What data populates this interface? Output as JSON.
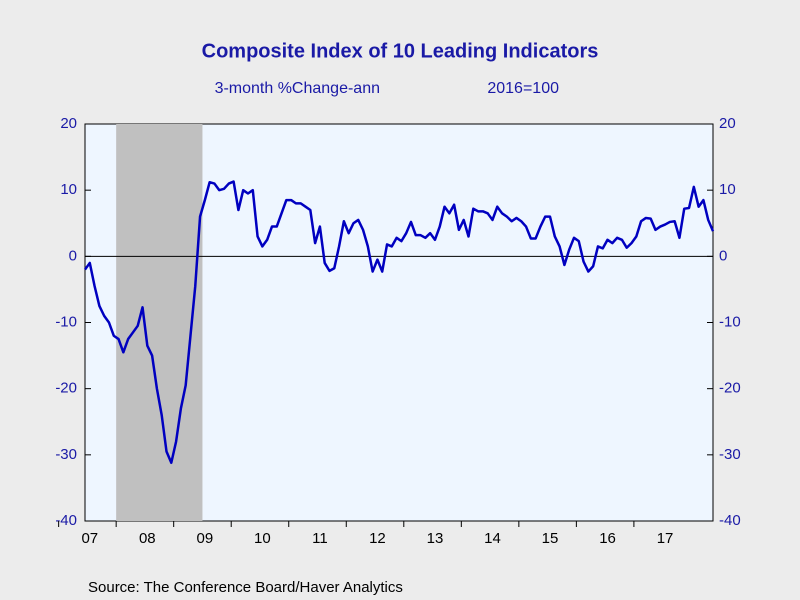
{
  "chart_data": {
    "type": "line",
    "title": "Composite Index of 10 Leading Indicators",
    "subtitle": "3-month %Change-ann",
    "subtitle_right": "2016=100",
    "source": "Source:  The Conference Board/Haver Analytics",
    "categories": [
      null,
      "07",
      null,
      null,
      null,
      null,
      null,
      null,
      null,
      null,
      null,
      null,
      null,
      "08",
      null,
      null,
      null,
      null,
      null,
      null,
      null,
      null,
      null,
      null,
      null,
      "09",
      null,
      null,
      null,
      null,
      null,
      null,
      null,
      null,
      null,
      null,
      null,
      "10",
      null,
      null,
      null,
      null,
      null,
      null,
      null,
      null,
      null,
      null,
      null,
      "11",
      null,
      null,
      null,
      null,
      null,
      null,
      null,
      null,
      null,
      null,
      null,
      "12",
      null,
      null,
      null,
      null,
      null,
      null,
      null,
      null,
      null,
      null,
      null,
      "13",
      null,
      null,
      null,
      null,
      null,
      null,
      null,
      null,
      null,
      null,
      null,
      "14",
      null,
      null,
      null,
      null,
      null,
      null,
      null,
      null,
      null,
      null,
      null,
      "15",
      null,
      null,
      null,
      null,
      null,
      null,
      null,
      null,
      null,
      null,
      null,
      "16",
      null,
      null,
      null,
      null,
      null,
      null,
      null,
      null,
      null,
      null,
      null,
      "17",
      null,
      null,
      null,
      null,
      null,
      null,
      null,
      null,
      null,
      null
    ],
    "series": [
      {
        "color": "#0000c0",
        "values": [
          -2,
          -1,
          -4.5,
          -7.5,
          -9,
          -10,
          -12,
          -12.5,
          -14.5,
          -12.5,
          -11.5,
          -10.5,
          -7.7,
          -13.5,
          -15,
          -20,
          -24,
          -29.5,
          -31.2,
          -28,
          -23,
          -19.5,
          -12,
          -4.5,
          6,
          8.5,
          11.2,
          11,
          10,
          10.2,
          11,
          11.3,
          7,
          10,
          9.5,
          10,
          3,
          1.5,
          2.5,
          4.5,
          4.5,
          6.5,
          8.5,
          8.5,
          8,
          8,
          7.5,
          7,
          2,
          4.5,
          -1,
          -2.2,
          -1.8,
          1.5,
          5.3,
          3.5,
          5,
          5.5,
          4,
          1.5,
          -2.3,
          -0.5,
          -2.3,
          1.8,
          1.5,
          2.8,
          2.3,
          3.5,
          5.2,
          3.2,
          3.2,
          2.8,
          3.5,
          2.5,
          4.5,
          7.5,
          6.5,
          7.8,
          4,
          5.5,
          3,
          7.2,
          6.8,
          6.8,
          6.5,
          5.5,
          7.5,
          6.5,
          6,
          5.3,
          5.8,
          5.3,
          4.5,
          2.7,
          2.7,
          4.5,
          6,
          6,
          3,
          1.5,
          -1.3,
          1,
          2.8,
          2.3,
          -0.8,
          -2.3,
          -1.5,
          1.5,
          1.2,
          2.5,
          2,
          2.8,
          2.5,
          1.3,
          2,
          3,
          5.3,
          5.8,
          5.7,
          4,
          4.5,
          4.8,
          5.2,
          5.3,
          2.8,
          7.2,
          7.3,
          10.5,
          7.5,
          8.5,
          5.5,
          3.8
        ]
      }
    ],
    "ylim": [
      -40,
      20
    ],
    "yticks": [
      20,
      10,
      0,
      -10,
      -20,
      -30,
      -40
    ],
    "y2lim": [
      -40,
      20
    ],
    "y2ticks": [
      20,
      10,
      0,
      -10,
      -20,
      -30,
      -40
    ],
    "zero_line": true,
    "shaded_ranges": [
      [
        7,
        24
      ]
    ],
    "shade_color": "#c0c0c0"
  }
}
